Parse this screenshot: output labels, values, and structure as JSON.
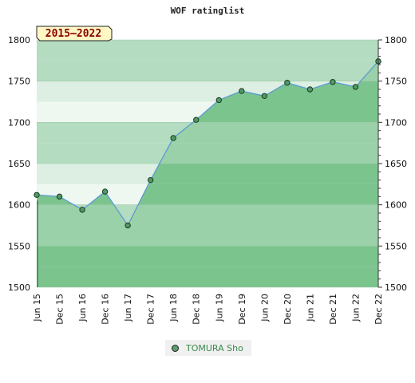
{
  "chart_data": {
    "type": "line",
    "title": "WOF ratinglist",
    "period_label": "2015–2022",
    "ylim": [
      1500,
      1800
    ],
    "y_ticks": [
      1500,
      1550,
      1600,
      1650,
      1700,
      1750,
      1800
    ],
    "categories": [
      "Jun 15",
      "Dec 15",
      "Jun 16",
      "Dec 16",
      "Jun 17",
      "Dec 17",
      "Jun 18",
      "Dec 18",
      "Jun 19",
      "Dec 19",
      "Jun 20",
      "Dec 20",
      "Jun 21",
      "Dec 21",
      "Jun 22",
      "Dec 22"
    ],
    "series": [
      {
        "name": "TOMURA Sho",
        "values": [
          1612,
          1610,
          1594,
          1616,
          1575,
          1630,
          1681,
          1703,
          1727,
          1738,
          1732,
          1748,
          1740,
          1749,
          1743,
          1774
        ]
      }
    ],
    "grid": true,
    "legend_position": "bottom-center",
    "colors": {
      "line": "#5b9bd5",
      "marker": "#4e9a63",
      "area_light": "#9bd1a8",
      "area_dark": "#7bc48e",
      "band_dark": "#b3dcc0",
      "band_light": "#dcefe2",
      "band_lighter": "#eef7f0",
      "badge_bg": "#fff7c4",
      "badge_text": "#8b0000"
    }
  }
}
